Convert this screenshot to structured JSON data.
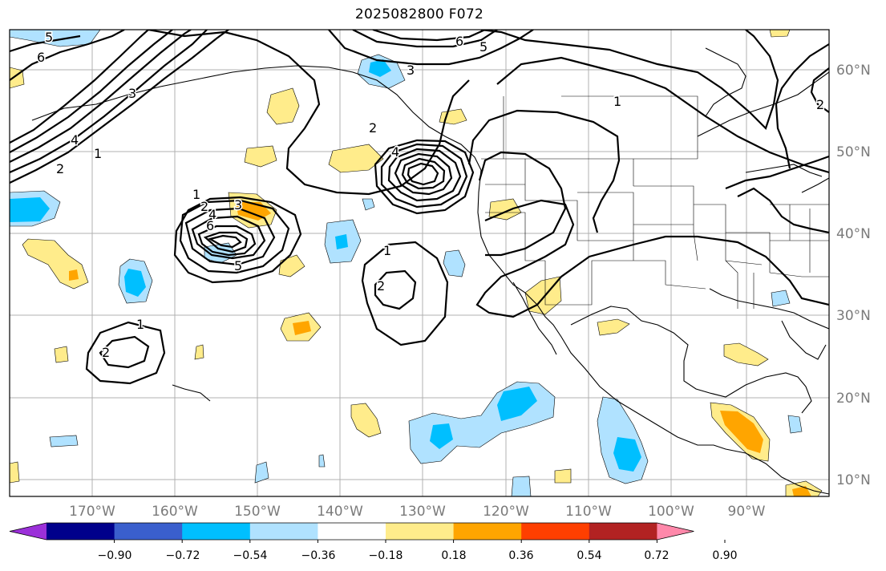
{
  "map": {
    "title": "2025082800 F072",
    "projection": "Plate Carrée",
    "lon_range": [
      -180,
      -81
    ],
    "lat_range": [
      8,
      65
    ],
    "longitude_labels": [
      "170°W",
      "160°W",
      "150°W",
      "140°W",
      "130°W",
      "120°W",
      "110°W",
      "100°W",
      "90°W"
    ],
    "latitude_labels": [
      "60°N",
      "50°N",
      "40°N",
      "30°N",
      "20°N",
      "10°N"
    ],
    "contour_labels": [
      "1",
      "2",
      "3",
      "4",
      "5",
      "6",
      "1",
      "2",
      "3",
      "4",
      "5",
      "6",
      "1",
      "2",
      "1",
      "2",
      "1",
      "2",
      "3",
      "4",
      "5",
      "6",
      "2"
    ]
  },
  "colorbar": {
    "tick_labels": [
      "−0.90",
      "−0.72",
      "−0.54",
      "−0.36",
      "−0.18",
      "0.18",
      "0.36",
      "0.54",
      "0.72",
      "0.90"
    ],
    "colors": [
      "#9b30d9",
      "#00008b",
      "#3a5fcd",
      "#00bfff",
      "#b0e2ff",
      "#ffffff",
      "#ffec8b",
      "#ffa500",
      "#ff3f00",
      "#b22222",
      "#ff88aa"
    ],
    "extend": "both"
  }
}
